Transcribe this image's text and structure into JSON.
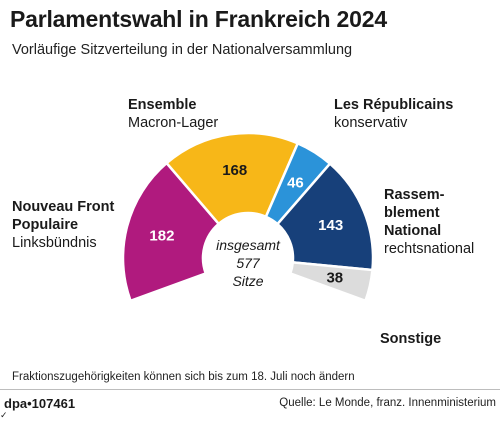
{
  "title": "Parlamentswahl in Frankreich 2024",
  "subtitle": "Vorläufige Sitzverteilung in der Nationalversammlung",
  "chart_data": {
    "type": "pie",
    "subtype": "semicircle-parliament",
    "total_label": [
      "insgesamt",
      "577",
      "Sitze"
    ],
    "total": 577,
    "series": [
      {
        "name": "Nouveau Front Populaire",
        "description": "Linksbündnis",
        "value": 182,
        "color": "#b01a7e"
      },
      {
        "name": "Ensemble",
        "description": "Macron-Lager",
        "value": 168,
        "color": "#f7b718"
      },
      {
        "name": "Les Républicains",
        "description": "konservativ",
        "value": 46,
        "color": "#2b93d9"
      },
      {
        "name": "Rassemblement National",
        "description": "rechtsnational",
        "value": 143,
        "color": "#17407a"
      },
      {
        "name": "Sonstige",
        "description": "",
        "value": 38,
        "color": "#dcdcdc"
      }
    ]
  },
  "labels": {
    "nfp_name": "Nouveau Front\nPopulaire",
    "nfp_desc": "Linksbündnis",
    "ens_name": "Ensemble",
    "ens_desc": "Macron-Lager",
    "lr_name": "Les Républicains",
    "lr_desc": "konservativ",
    "rn_name": "Rassem-\nblement\nNational",
    "rn_desc": "rechtsnational",
    "other_name": "Sonstige"
  },
  "footnote": "Fraktionszugehörigkeiten können sich bis zum 18. Juli noch ändern",
  "agency": "dpa•107461",
  "source": "Quelle: Le Monde, franz. Innenministerium",
  "corner_mark": "✓"
}
